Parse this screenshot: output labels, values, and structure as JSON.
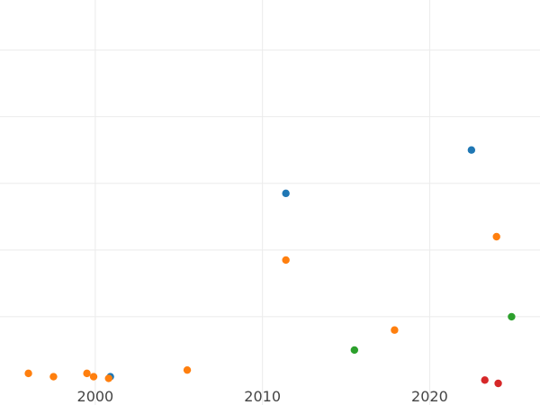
{
  "chart_data": {
    "type": "scatter",
    "title": "",
    "xlabel": "",
    "ylabel": "",
    "xlim": [
      1994.3,
      2026.6
    ],
    "ylim": [
      0,
      115
    ],
    "x_ticks": [
      2000,
      2010,
      2020
    ],
    "x_tick_labels": [
      "2000",
      "2010",
      "2020"
    ],
    "y_gridlines": [
      20,
      40,
      60,
      80,
      100
    ],
    "y_tick_labels_visible": false,
    "grid": true,
    "legend": "none",
    "series": [
      {
        "color": "#1f77b4",
        "points": [
          {
            "x": 2000.9,
            "y": 2
          },
          {
            "x": 2011.4,
            "y": 57
          },
          {
            "x": 2022.5,
            "y": 70
          }
        ]
      },
      {
        "color": "#ff7f0e",
        "points": [
          {
            "x": 1996.0,
            "y": 3
          },
          {
            "x": 1997.5,
            "y": 2
          },
          {
            "x": 1999.5,
            "y": 3
          },
          {
            "x": 1999.9,
            "y": 2
          },
          {
            "x": 2000.8,
            "y": 1.5
          },
          {
            "x": 2005.5,
            "y": 4
          },
          {
            "x": 2011.4,
            "y": 37
          },
          {
            "x": 2017.9,
            "y": 16
          },
          {
            "x": 2024.0,
            "y": 44
          }
        ]
      },
      {
        "color": "#2ca02c",
        "points": [
          {
            "x": 2015.5,
            "y": 10
          },
          {
            "x": 2024.9,
            "y": 20
          }
        ]
      },
      {
        "color": "#d62728",
        "points": [
          {
            "x": 2023.3,
            "y": 1
          },
          {
            "x": 2024.1,
            "y": 0
          }
        ]
      }
    ]
  }
}
